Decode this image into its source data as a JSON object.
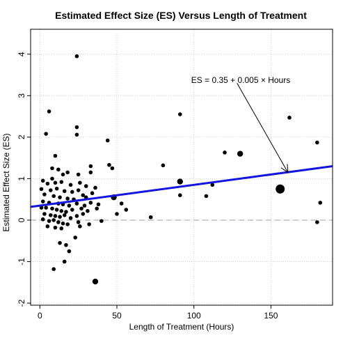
{
  "chart_data": {
    "type": "scatter",
    "title": "Estimated Effect Size (ES) Versus Length of Treatment",
    "xlabel": "Length of Treatment (Hours)",
    "ylabel": "Estimated Effect Size (ES)",
    "xlim": [
      -6,
      190
    ],
    "ylim": [
      -2.05,
      4.6
    ],
    "xticks": [
      0,
      50,
      100,
      150
    ],
    "yticks": [
      -2,
      -1,
      0,
      1,
      2,
      3,
      4
    ],
    "grid": true,
    "reference_line_y": 0,
    "regression": {
      "intercept": 0.35,
      "slope": 0.005,
      "color": "#1515e0"
    },
    "annotation": {
      "text": "ES  =  0.35  +  0.005  ×  Hours",
      "arrow_from": [
        128,
        3.3
      ],
      "arrow_to": [
        161,
        1.15
      ]
    },
    "points": [
      {
        "x": 24,
        "y": 3.95,
        "s": 1
      },
      {
        "x": 6,
        "y": 2.62,
        "s": 1
      },
      {
        "x": 4,
        "y": 2.08,
        "s": 1
      },
      {
        "x": 24,
        "y": 2.24,
        "s": 1
      },
      {
        "x": 24,
        "y": 2.06,
        "s": 1
      },
      {
        "x": 10,
        "y": 1.55,
        "s": 1
      },
      {
        "x": 8,
        "y": 1.25,
        "s": 1
      },
      {
        "x": 8,
        "y": 1.0,
        "s": 1
      },
      {
        "x": 12,
        "y": 1.22,
        "s": 1
      },
      {
        "x": 15,
        "y": 1.1,
        "s": 1
      },
      {
        "x": 18,
        "y": 1.15,
        "s": 1
      },
      {
        "x": 25,
        "y": 1.1,
        "s": 1
      },
      {
        "x": 33,
        "y": 1.3,
        "s": 1
      },
      {
        "x": 33,
        "y": 1.15,
        "s": 1
      },
      {
        "x": 44,
        "y": 1.92,
        "s": 1
      },
      {
        "x": 45,
        "y": 1.33,
        "s": 1
      },
      {
        "x": 47,
        "y": 1.25,
        "s": 1
      },
      {
        "x": 2,
        "y": 0.95,
        "s": 1
      },
      {
        "x": 5,
        "y": 0.88,
        "s": 1
      },
      {
        "x": 10,
        "y": 0.9,
        "s": 1
      },
      {
        "x": 14,
        "y": 0.92,
        "s": 1
      },
      {
        "x": 20,
        "y": 0.85,
        "s": 1
      },
      {
        "x": 26,
        "y": 0.9,
        "s": 1
      },
      {
        "x": 30,
        "y": 0.82,
        "s": 1
      },
      {
        "x": 36,
        "y": 0.78,
        "s": 1
      },
      {
        "x": 1,
        "y": 0.75,
        "s": 1
      },
      {
        "x": 7,
        "y": 0.72,
        "s": 1
      },
      {
        "x": 11,
        "y": 0.76,
        "s": 1
      },
      {
        "x": 16,
        "y": 0.7,
        "s": 1
      },
      {
        "x": 21,
        "y": 0.68,
        "s": 1
      },
      {
        "x": 25,
        "y": 0.72,
        "s": 1
      },
      {
        "x": 28,
        "y": 0.6,
        "s": 1
      },
      {
        "x": 34,
        "y": 0.65,
        "s": 1
      },
      {
        "x": 3,
        "y": 0.62,
        "s": 1
      },
      {
        "x": 9,
        "y": 0.58,
        "s": 1
      },
      {
        "x": 13,
        "y": 0.55,
        "s": 1
      },
      {
        "x": 18,
        "y": 0.52,
        "s": 1
      },
      {
        "x": 22,
        "y": 0.5,
        "s": 1
      },
      {
        "x": 30,
        "y": 0.55,
        "s": 1
      },
      {
        "x": 2,
        "y": 0.45,
        "s": 1
      },
      {
        "x": 6,
        "y": 0.42,
        "s": 1
      },
      {
        "x": 12,
        "y": 0.4,
        "s": 1
      },
      {
        "x": 15,
        "y": 0.38,
        "s": 1
      },
      {
        "x": 19,
        "y": 0.35,
        "s": 1
      },
      {
        "x": 24,
        "y": 0.4,
        "s": 1
      },
      {
        "x": 29,
        "y": 0.35,
        "s": 1
      },
      {
        "x": 33,
        "y": 0.42,
        "s": 1
      },
      {
        "x": 38,
        "y": 0.38,
        "s": 1
      },
      {
        "x": 1,
        "y": 0.3,
        "s": 1
      },
      {
        "x": 4,
        "y": 0.3,
        "s": 1
      },
      {
        "x": 8,
        "y": 0.28,
        "s": 1
      },
      {
        "x": 11,
        "y": 0.25,
        "s": 1
      },
      {
        "x": 14,
        "y": 0.22,
        "s": 1
      },
      {
        "x": 17,
        "y": 0.2,
        "s": 1
      },
      {
        "x": 21,
        "y": 0.25,
        "s": 1
      },
      {
        "x": 27,
        "y": 0.28,
        "s": 1
      },
      {
        "x": 31,
        "y": 0.22,
        "s": 1
      },
      {
        "x": 3,
        "y": 0.15,
        "s": 1
      },
      {
        "x": 7,
        "y": 0.12,
        "s": 1
      },
      {
        "x": 10,
        "y": 0.1,
        "s": 1
      },
      {
        "x": 13,
        "y": 0.08,
        "s": 1
      },
      {
        "x": 16,
        "y": 0.12,
        "s": 1
      },
      {
        "x": 20,
        "y": 0.05,
        "s": 1
      },
      {
        "x": 24,
        "y": 0.1,
        "s": 1
      },
      {
        "x": 28,
        "y": 0.15,
        "s": 1
      },
      {
        "x": 2,
        "y": 0.02,
        "s": 1
      },
      {
        "x": 6,
        "y": -0.02,
        "s": 1
      },
      {
        "x": 9,
        "y": 0.0,
        "s": 1
      },
      {
        "x": 12,
        "y": -0.05,
        "s": 1
      },
      {
        "x": 15,
        "y": -0.08,
        "s": 1
      },
      {
        "x": 18,
        "y": -0.1,
        "s": 1
      },
      {
        "x": 25,
        "y": -0.05,
        "s": 1
      },
      {
        "x": 32,
        "y": -0.1,
        "s": 1
      },
      {
        "x": 5,
        "y": -0.15,
        "s": 1
      },
      {
        "x": 10,
        "y": -0.18,
        "s": 1
      },
      {
        "x": 14,
        "y": -0.2,
        "s": 1
      },
      {
        "x": 26,
        "y": -0.15,
        "s": 1
      },
      {
        "x": 23,
        "y": -0.42,
        "s": 1
      },
      {
        "x": 13,
        "y": -0.55,
        "s": 1
      },
      {
        "x": 17,
        "y": -0.6,
        "s": 1
      },
      {
        "x": 19,
        "y": -0.75,
        "s": 1
      },
      {
        "x": 16,
        "y": -1.0,
        "s": 1
      },
      {
        "x": 9,
        "y": -1.18,
        "s": 1
      },
      {
        "x": 36,
        "y": -1.48,
        "s": 2
      },
      {
        "x": 40,
        "y": -0.02,
        "s": 1
      },
      {
        "x": 37,
        "y": 0.28,
        "s": 1
      },
      {
        "x": 48,
        "y": 0.55,
        "s": 2
      },
      {
        "x": 50,
        "y": 0.15,
        "s": 1
      },
      {
        "x": 53,
        "y": 0.4,
        "s": 1
      },
      {
        "x": 56,
        "y": 0.25,
        "s": 1
      },
      {
        "x": 72,
        "y": 0.07,
        "s": 1
      },
      {
        "x": 80,
        "y": 1.32,
        "s": 1
      },
      {
        "x": 91,
        "y": 2.55,
        "s": 1
      },
      {
        "x": 91,
        "y": 0.93,
        "s": 2
      },
      {
        "x": 91,
        "y": 0.6,
        "s": 1
      },
      {
        "x": 108,
        "y": 0.58,
        "s": 1
      },
      {
        "x": 112,
        "y": 0.85,
        "s": 1
      },
      {
        "x": 120,
        "y": 1.63,
        "s": 1
      },
      {
        "x": 130,
        "y": 1.6,
        "s": 2
      },
      {
        "x": 156,
        "y": 0.75,
        "s": 3
      },
      {
        "x": 162,
        "y": 2.47,
        "s": 1
      },
      {
        "x": 180,
        "y": 1.87,
        "s": 1
      },
      {
        "x": 180,
        "y": -0.05,
        "s": 1
      },
      {
        "x": 182,
        "y": 0.42,
        "s": 1
      }
    ]
  }
}
